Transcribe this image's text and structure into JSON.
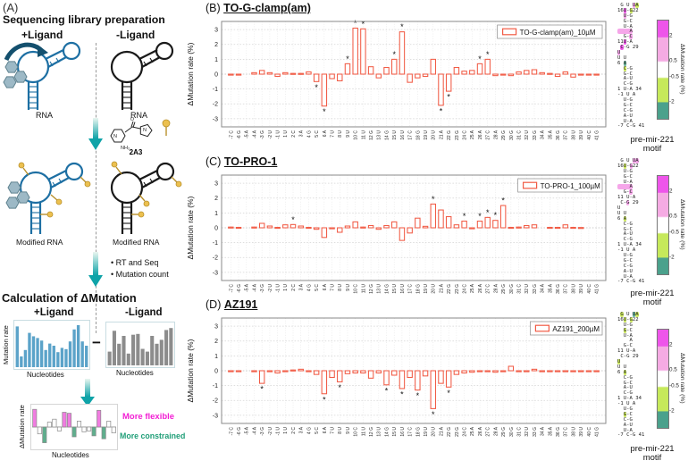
{
  "panel_a": {
    "label": "(A)",
    "title": "Sequencing library preparation",
    "plus_ligand": "+Ligand",
    "minus_ligand": "-Ligand",
    "rna_label": "RNA",
    "compound_name": "2A3",
    "nh2_label": "NH₂",
    "o_label": "O",
    "n_label": "N",
    "modified_rna_label": "Modified RNA",
    "bullets": [
      "RT and Seq",
      "Mutation count"
    ],
    "calc_title": "Calculation of ΔMutation",
    "minus_sign": "−",
    "mini_plus": {
      "ylabel": "Mutation rate",
      "xlabel": "Nucleotides",
      "values": [
        0.95,
        0.25,
        0.4,
        0.8,
        0.72,
        0.68,
        0.62,
        0.4,
        0.55,
        0.5,
        0.35,
        0.45,
        0.42,
        0.6,
        0.88,
        0.98,
        0.6,
        0.5
      ]
    },
    "mini_minus": {
      "xlabel": "Nucleotides",
      "values": [
        0.35,
        0.88,
        0.55,
        0.75,
        0.3,
        0.78,
        0.8,
        0.42,
        0.35,
        0.75,
        0.55,
        0.65,
        0.9,
        0.95
      ]
    },
    "mini_delta": {
      "ylabel": "ΔMutation rate",
      "xlabel": "Nucleotides",
      "values": [
        0.9,
        -0.35,
        -0.8,
        0.25,
        0.4,
        -0.2,
        0.75,
        0.7,
        -0.5,
        0.3,
        -0.25,
        -0.2,
        -0.45,
        0.85,
        -0.6,
        0.3,
        -0.3
      ],
      "classes": [
        "p",
        "w",
        "g",
        "w",
        "w",
        "w",
        "p",
        "p",
        "g",
        "w",
        "w",
        "w",
        "g",
        "p",
        "g",
        "w",
        "w"
      ]
    },
    "legend_flexible": "More flexible",
    "legend_constrained": "More constrained"
  },
  "chart_data": [
    {
      "type": "bar",
      "panel": "(B)",
      "title": "TO-G-clamp(am)",
      "legend": "TO-G-clamp(am)_10µM",
      "ylabel": "ΔMutation rate (%)",
      "ylim": [
        -3,
        3
      ],
      "yticks": [
        -3,
        -2,
        -1,
        0,
        1,
        2,
        3
      ],
      "grid": true,
      "categories": [
        "-7 C",
        "-6 G",
        "-5 A",
        "-4 A",
        "-3 G",
        "-2 U",
        "-1 U",
        "1 U",
        "2 C",
        "3 A",
        "4 G",
        "5 C",
        "6 A",
        "7 U",
        "8 U",
        "9 U",
        "10 C",
        "11 U",
        "12 G",
        "13 U",
        "14 G",
        "15 U",
        "16 U",
        "17 C",
        "18 G",
        "19 U",
        "20 U",
        "21 A",
        "22 G",
        "23 G",
        "24 C",
        "25 A",
        "26 A",
        "27 C",
        "28 A",
        "29 G",
        "30 G",
        "31 C",
        "32 U",
        "33 G",
        "34 A",
        "35 A",
        "36 G",
        "37 C",
        "38 U",
        "39 U",
        "40 C",
        "41 G"
      ],
      "values": [
        -0.05,
        -0.03,
        0,
        0.1,
        0.25,
        0.1,
        -0.15,
        0.1,
        0.05,
        0.05,
        0.15,
        -0.5,
        -2.15,
        -0.3,
        -0.45,
        0.7,
        3.1,
        3.05,
        0.5,
        -0.25,
        0.45,
        1.0,
        2.85,
        -0.55,
        -0.25,
        -0.15,
        1.0,
        -2.1,
        -1.15,
        0.45,
        0.2,
        0.25,
        0.7,
        1.0,
        -0.1,
        -0.05,
        -0.1,
        0.15,
        0.25,
        0.3,
        0.1,
        0.05,
        -0.15,
        0.15,
        -0.2,
        -0.05,
        -0.03,
        -0.03
      ],
      "star_indices": [
        11,
        12,
        15,
        16,
        17,
        21,
        22,
        27,
        28,
        32,
        33
      ],
      "star_symbol": "*"
    },
    {
      "type": "bar",
      "panel": "(C)",
      "title": "TO-PRO-1",
      "legend": "TO-PRO-1_100µM",
      "ylabel": "ΔMutation rate (%)",
      "ylim": [
        -3,
        3
      ],
      "yticks": [
        -3,
        -2,
        -1,
        0,
        1,
        2,
        3
      ],
      "grid": true,
      "categories": [
        "-7 C",
        "-6 G",
        "-5 A",
        "-4 A",
        "-3 G",
        "-2 U",
        "-1 U",
        "1 U",
        "2 C",
        "3 A",
        "4 G",
        "5 C",
        "6 A",
        "7 U",
        "8 U",
        "9 U",
        "10 C",
        "11 U",
        "12 G",
        "13 U",
        "14 G",
        "15 U",
        "16 U",
        "17 C",
        "18 G",
        "19 U",
        "20 U",
        "21 A",
        "22 G",
        "23 G",
        "24 C",
        "25 A",
        "26 A",
        "27 C",
        "28 A",
        "29 G",
        "30 G",
        "31 C",
        "32 U",
        "33 G",
        "34 A",
        "35 A",
        "36 G",
        "37 C",
        "38 U",
        "39 U",
        "40 C",
        "41 G"
      ],
      "values": [
        0.05,
        0.03,
        0,
        0.05,
        0.3,
        0.12,
        0.03,
        0.2,
        0.22,
        0.12,
        0.03,
        -0.1,
        -0.65,
        -0.05,
        -0.3,
        0.12,
        0.4,
        0.05,
        0.15,
        -0.1,
        0.15,
        0.4,
        -0.85,
        -0.35,
        0.65,
        0.1,
        1.6,
        1.2,
        0.75,
        0.2,
        0.45,
        -0.05,
        0.45,
        0.7,
        0.5,
        1.5,
        0.03,
        0.05,
        0.15,
        0.2,
        0,
        0.03,
        0.03,
        0.2,
        0.03,
        0.02,
        0,
        0
      ],
      "star_indices": [
        8,
        26,
        30,
        32,
        33,
        34,
        35
      ],
      "star_symbol": "*"
    },
    {
      "type": "bar",
      "panel": "(D)",
      "title": "AZ191",
      "legend": "AZ191_200µM",
      "ylabel": "ΔMutation rate (%)",
      "ylim": [
        -3,
        3
      ],
      "yticks": [
        -3,
        -2,
        -1,
        0,
        1,
        2,
        3
      ],
      "grid": true,
      "categories": [
        "-7 C",
        "-6 G",
        "-5 A",
        "-4 A",
        "-3 G",
        "-2 U",
        "-1 U",
        "1 U",
        "2 C",
        "3 A",
        "4 G",
        "5 C",
        "6 A",
        "7 U",
        "8 U",
        "9 U",
        "10 C",
        "11 U",
        "12 G",
        "13 U",
        "14 G",
        "15 U",
        "16 U",
        "17 C",
        "18 G",
        "19 U",
        "20 U",
        "21 A",
        "22 G",
        "23 G",
        "24 C",
        "25 A",
        "26 A",
        "27 C",
        "28 A",
        "29 G",
        "30 G",
        "31 C",
        "32 U",
        "33 G",
        "34 A",
        "35 A",
        "36 G",
        "37 C",
        "38 U",
        "39 U",
        "40 C",
        "41 G"
      ],
      "values": [
        -0.03,
        -0.03,
        0,
        -0.05,
        -0.85,
        -0.05,
        -0.15,
        -0.05,
        0.05,
        0.1,
        -0.05,
        -0.25,
        -1.55,
        -0.45,
        -0.75,
        -0.2,
        -0.15,
        -0.15,
        -0.5,
        -0.15,
        -0.95,
        -0.3,
        -1.2,
        -0.45,
        -1.3,
        -0.35,
        -2.55,
        -0.85,
        -1.1,
        -0.25,
        -0.15,
        -0.1,
        -0.05,
        -0.05,
        -0.1,
        -0.05,
        0.3,
        -0.05,
        -0.05,
        0.1,
        -0.03,
        -0.03,
        -0.03,
        -0.05,
        -0.05,
        -0.03,
        -0.05,
        -0.05
      ],
      "star_indices": [
        4,
        12,
        14,
        20,
        22,
        24,
        26,
        28
      ],
      "star_symbol": "*"
    }
  ],
  "motif": {
    "caption_line1": "pre-mir-221",
    "caption_line2": "motif",
    "colorbar": {
      "label": "ΔMutation rate (%)",
      "ticks": [
        {
          "label": "2",
          "value": 2
        },
        {
          "label": "0.5",
          "value": 0.5
        },
        {
          "label": "-0.5",
          "value": -0.5
        },
        {
          "label": "-2",
          "value": -2
        }
      ],
      "range": [
        -3,
        3
      ],
      "colors": {
        "strong_positive": "#ee55ea",
        "positive": "#f5abe3",
        "neutral": "#ffffff",
        "negative": "#c6e95b",
        "strong_negative": "#4ba18c"
      }
    },
    "lines_b": [
      [
        [
          " G U ",
          ""
        ],
        [
          "U",
          "p"
        ],
        [
          "A",
          "g"
        ]
      ],
      [
        [
          "16",
          ""
        ],
        [
          "U",
          "P"
        ],
        [
          "-",
          ""
        ],
        [
          "G",
          "g"
        ],
        [
          "22",
          ""
        ]
      ],
      [
        [
          "  ",
          ""
        ],
        [
          "U",
          "p"
        ],
        [
          "-G",
          ""
        ]
      ],
      [
        [
          "  G-C",
          ""
        ]
      ],
      [
        [
          "  U-A",
          ""
        ]
      ],
      [
        [
          "    A",
          "p"
        ]
      ],
      [
        [
          "  G-",
          ""
        ],
        [
          "C",
          "p"
        ]
      ],
      [
        [
          "11",
          ""
        ],
        [
          "U",
          "P"
        ],
        [
          "-A",
          ""
        ]
      ],
      [
        [
          " ",
          ""
        ],
        [
          "C",
          "P"
        ],
        [
          "-G 29",
          ""
        ]
      ],
      [
        [
          "U",
          "p"
        ]
      ],
      [
        [
          "U U",
          ""
        ]
      ],
      [
        [
          "6 ",
          ""
        ],
        [
          "A",
          "G"
        ]
      ],
      [
        [
          "  ",
          ""
        ],
        [
          "C",
          "g"
        ],
        [
          "-G",
          ""
        ]
      ],
      [
        [
          "  G-C",
          ""
        ]
      ],
      [
        [
          "  A-U",
          ""
        ]
      ],
      [
        [
          "  C-G",
          ""
        ]
      ],
      [
        [
          "1 U-A 34",
          ""
        ]
      ],
      [
        [
          "-1 U A",
          ""
        ]
      ],
      [
        [
          "  U-G",
          ""
        ]
      ],
      [
        [
          "  G-C",
          ""
        ]
      ],
      [
        [
          "  C-G",
          ""
        ]
      ],
      [
        [
          "  A-U",
          ""
        ]
      ],
      [
        [
          "  U-A",
          ""
        ]
      ],
      [
        [
          "-7 C-G 41",
          ""
        ]
      ]
    ],
    "lines_c": [
      [
        [
          " G U ",
          ""
        ],
        [
          "U",
          "p"
        ],
        [
          "A",
          "p"
        ]
      ],
      [
        [
          "16",
          ""
        ],
        [
          "U",
          "g"
        ],
        [
          "-",
          ""
        ],
        [
          "G",
          "p"
        ],
        [
          "22",
          ""
        ]
      ],
      [
        [
          "  U-G",
          ""
        ]
      ],
      [
        [
          "  G-C",
          ""
        ]
      ],
      [
        [
          "  U-A",
          ""
        ]
      ],
      [
        [
          "    A",
          "p"
        ]
      ],
      [
        [
          "  G-",
          ""
        ],
        [
          "C",
          "p"
        ]
      ],
      [
        [
          "11 U-A",
          ""
        ]
      ],
      [
        [
          " C-",
          ""
        ],
        [
          "G",
          "p"
        ],
        [
          " 29",
          ""
        ]
      ],
      [
        [
          "U",
          ""
        ]
      ],
      [
        [
          "U U",
          ""
        ]
      ],
      [
        [
          "6 ",
          ""
        ],
        [
          "A",
          "g"
        ]
      ],
      [
        [
          "  C-G",
          ""
        ]
      ],
      [
        [
          "  G-C",
          ""
        ]
      ],
      [
        [
          "  A-U",
          ""
        ]
      ],
      [
        [
          "  C-G",
          ""
        ]
      ],
      [
        [
          "1 U-A 34",
          ""
        ]
      ],
      [
        [
          "-1 U A",
          ""
        ]
      ],
      [
        [
          "  U-G",
          ""
        ]
      ],
      [
        [
          "  G-C",
          ""
        ]
      ],
      [
        [
          "  C-G",
          ""
        ]
      ],
      [
        [
          "  A-U",
          ""
        ]
      ],
      [
        [
          "  U-A",
          ""
        ]
      ],
      [
        [
          "-7 C-G 41",
          ""
        ]
      ]
    ],
    "lines_d": [
      [
        [
          " ",
          ""
        ],
        [
          "G",
          "g"
        ],
        [
          " U ",
          ""
        ],
        [
          "U",
          "G"
        ],
        [
          "A",
          "g"
        ]
      ],
      [
        [
          "16",
          ""
        ],
        [
          "U",
          "g"
        ],
        [
          "-",
          ""
        ],
        [
          "G",
          "g"
        ],
        [
          "22",
          ""
        ]
      ],
      [
        [
          "  U-G",
          ""
        ]
      ],
      [
        [
          "  ",
          ""
        ],
        [
          "G",
          "g"
        ],
        [
          "-C",
          ""
        ]
      ],
      [
        [
          "  U-A",
          ""
        ]
      ],
      [
        [
          "    A",
          ""
        ]
      ],
      [
        [
          "  G-C",
          ""
        ]
      ],
      [
        [
          "11 U-A",
          ""
        ]
      ],
      [
        [
          " C-G 29",
          ""
        ]
      ],
      [
        [
          "U",
          "g"
        ]
      ],
      [
        [
          "U U",
          ""
        ]
      ],
      [
        [
          "6 ",
          ""
        ],
        [
          "A",
          "g"
        ]
      ],
      [
        [
          "  C-G",
          ""
        ]
      ],
      [
        [
          "  G-C",
          ""
        ]
      ],
      [
        [
          "  A-U",
          ""
        ]
      ],
      [
        [
          "  C-G",
          ""
        ]
      ],
      [
        [
          "1 U-A 34",
          ""
        ]
      ],
      [
        [
          "-1 U A",
          ""
        ]
      ],
      [
        [
          "  U-G",
          ""
        ]
      ],
      [
        [
          "  ",
          ""
        ],
        [
          "G",
          "g"
        ],
        [
          "-C",
          ""
        ]
      ],
      [
        [
          "  C-G",
          ""
        ]
      ],
      [
        [
          "  A-U",
          ""
        ]
      ],
      [
        [
          "  U-A",
          ""
        ]
      ],
      [
        [
          "-7 C-G 41",
          ""
        ]
      ]
    ]
  },
  "colors": {
    "bar_stroke": "#f15b45",
    "rna_blue": "#1d6fa3",
    "teal_arrow": "#0fa3a8",
    "plus_bars": "#5ba3c9",
    "minus_bars": "#8c8c8c",
    "delta_pink": "#f07ce0",
    "delta_green": "#5fae8d"
  }
}
